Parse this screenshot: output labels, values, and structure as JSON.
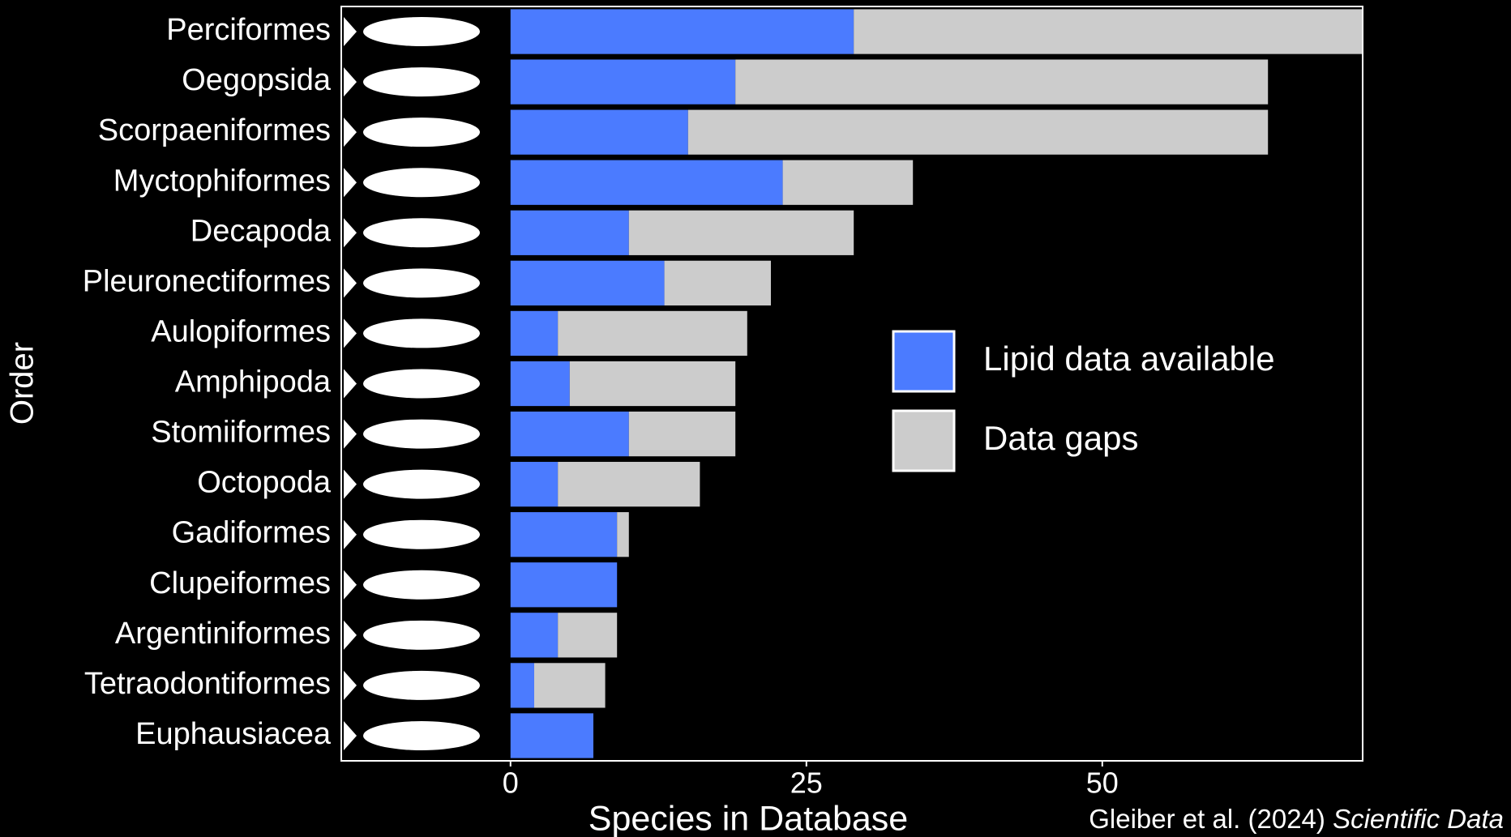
{
  "chart_data": {
    "type": "stacked-barh",
    "y_label": "Order",
    "x_label": "Species in Database",
    "credit_text": "Gleiber et al. (2024) ",
    "credit_journal": "Scientific Data",
    "categories": [
      "Perciformes",
      "Oegopsida",
      "Scorpaeniformes",
      "Myctophiformes",
      "Decapoda",
      "Pleuronectiformes",
      "Aulopiformes",
      "Amphipoda",
      "Stomiiformes",
      "Octopoda",
      "Gadiformes",
      "Clupeiformes",
      "Argentiniformes",
      "Tetraodontiformes",
      "Euphausiacea"
    ],
    "series": [
      {
        "name": "Lipid data available",
        "color": "#4b7bff",
        "values": [
          29,
          19,
          15,
          23,
          10,
          13,
          4,
          5,
          10,
          4,
          9,
          9,
          4,
          2,
          7
        ]
      },
      {
        "name": "Data gaps",
        "color": "#cccccc",
        "values": [
          43,
          45,
          49,
          11,
          19,
          9,
          16,
          14,
          9,
          12,
          1,
          0,
          5,
          6,
          0
        ]
      }
    ],
    "xlim": [
      -14.3,
      72
    ],
    "xticks": [
      0,
      25,
      50
    ]
  }
}
